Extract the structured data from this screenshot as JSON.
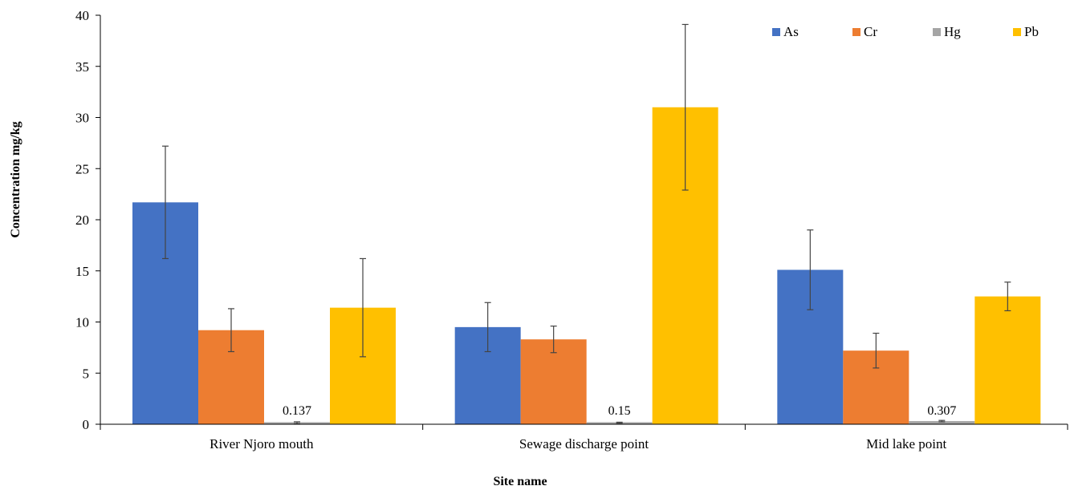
{
  "chart_data": {
    "type": "bar",
    "title": "",
    "xlabel": "Site name",
    "ylabel": "Concentration mg/kg",
    "ylim": [
      0,
      40
    ],
    "yticks": [
      0,
      5,
      10,
      15,
      20,
      25,
      30,
      35,
      40
    ],
    "grid": false,
    "legend_position": "top-right",
    "categories": [
      "River Njoro mouth",
      "Sewage discharge point",
      "Mid lake point"
    ],
    "series": [
      {
        "name": "As",
        "color": "#4472C4",
        "values": [
          21.7,
          9.5,
          15.1
        ],
        "errors": [
          5.5,
          2.4,
          3.9
        ]
      },
      {
        "name": "Cr",
        "color": "#ED7D31",
        "values": [
          9.2,
          8.3,
          7.2
        ],
        "errors": [
          2.1,
          1.3,
          1.7
        ]
      },
      {
        "name": "Hg",
        "color": "#A5A5A5",
        "values": [
          0.137,
          0.15,
          0.307
        ],
        "errors": [
          0.1,
          0.05,
          0.07
        ],
        "data_labels": [
          "0.137",
          "0.15",
          "0.307"
        ]
      },
      {
        "name": "Pb",
        "color": "#FFC000",
        "values": [
          11.4,
          31.0,
          12.5
        ],
        "errors": [
          4.8,
          8.1,
          1.4
        ]
      }
    ]
  }
}
